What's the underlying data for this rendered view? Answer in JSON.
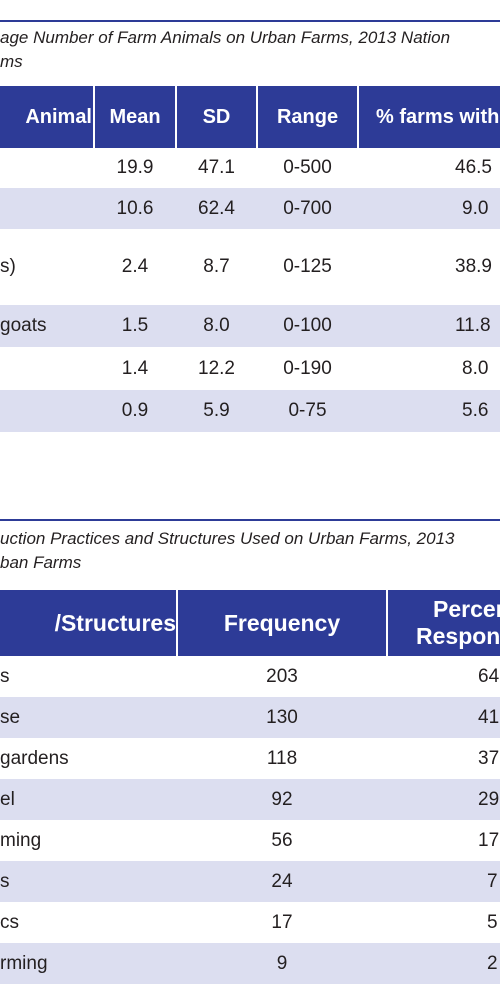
{
  "table1": {
    "caption_line1": "age Number of Farm Animals on Urban Farms, 2013 Nation",
    "caption_line2": "ms",
    "headers": [
      "Animal",
      "Mean",
      "SD",
      "Range",
      "% farms with"
    ],
    "rows": [
      [
        "",
        "19.9",
        "47.1",
        "0-500",
        "46.5"
      ],
      [
        "",
        "10.6",
        "62.4",
        "0-700",
        "9.0"
      ],
      [
        "s)",
        "2.4",
        "8.7",
        "0-125",
        "38.9"
      ],
      [
        "goats",
        "1.5",
        "8.0",
        "0-100",
        "11.8"
      ],
      [
        "",
        "1.4",
        "12.2",
        "0-190",
        "8.0"
      ],
      [
        "",
        "0.9",
        "5.9",
        "0-75",
        "5.6"
      ]
    ]
  },
  "table2": {
    "caption_line1": "uction Practices and Structures Used on Urban Farms, 2013",
    "caption_line2": "ban Farms",
    "headers": [
      "/Structures",
      "Frequency",
      "Percen",
      "Respon"
    ],
    "rows": [
      [
        "s",
        "203",
        "64"
      ],
      [
        "se",
        "130",
        "41"
      ],
      [
        "gardens",
        "118",
        "37"
      ],
      [
        "el",
        "92",
        "29"
      ],
      [
        "ming",
        "56",
        "17"
      ],
      [
        "s",
        "24",
        "7"
      ],
      [
        "cs",
        "17",
        "5"
      ],
      [
        "rming",
        "9",
        "2"
      ]
    ]
  },
  "colors": {
    "header": "#2d3b97",
    "alt_row": "#dcdef0",
    "text": "#231f20"
  }
}
